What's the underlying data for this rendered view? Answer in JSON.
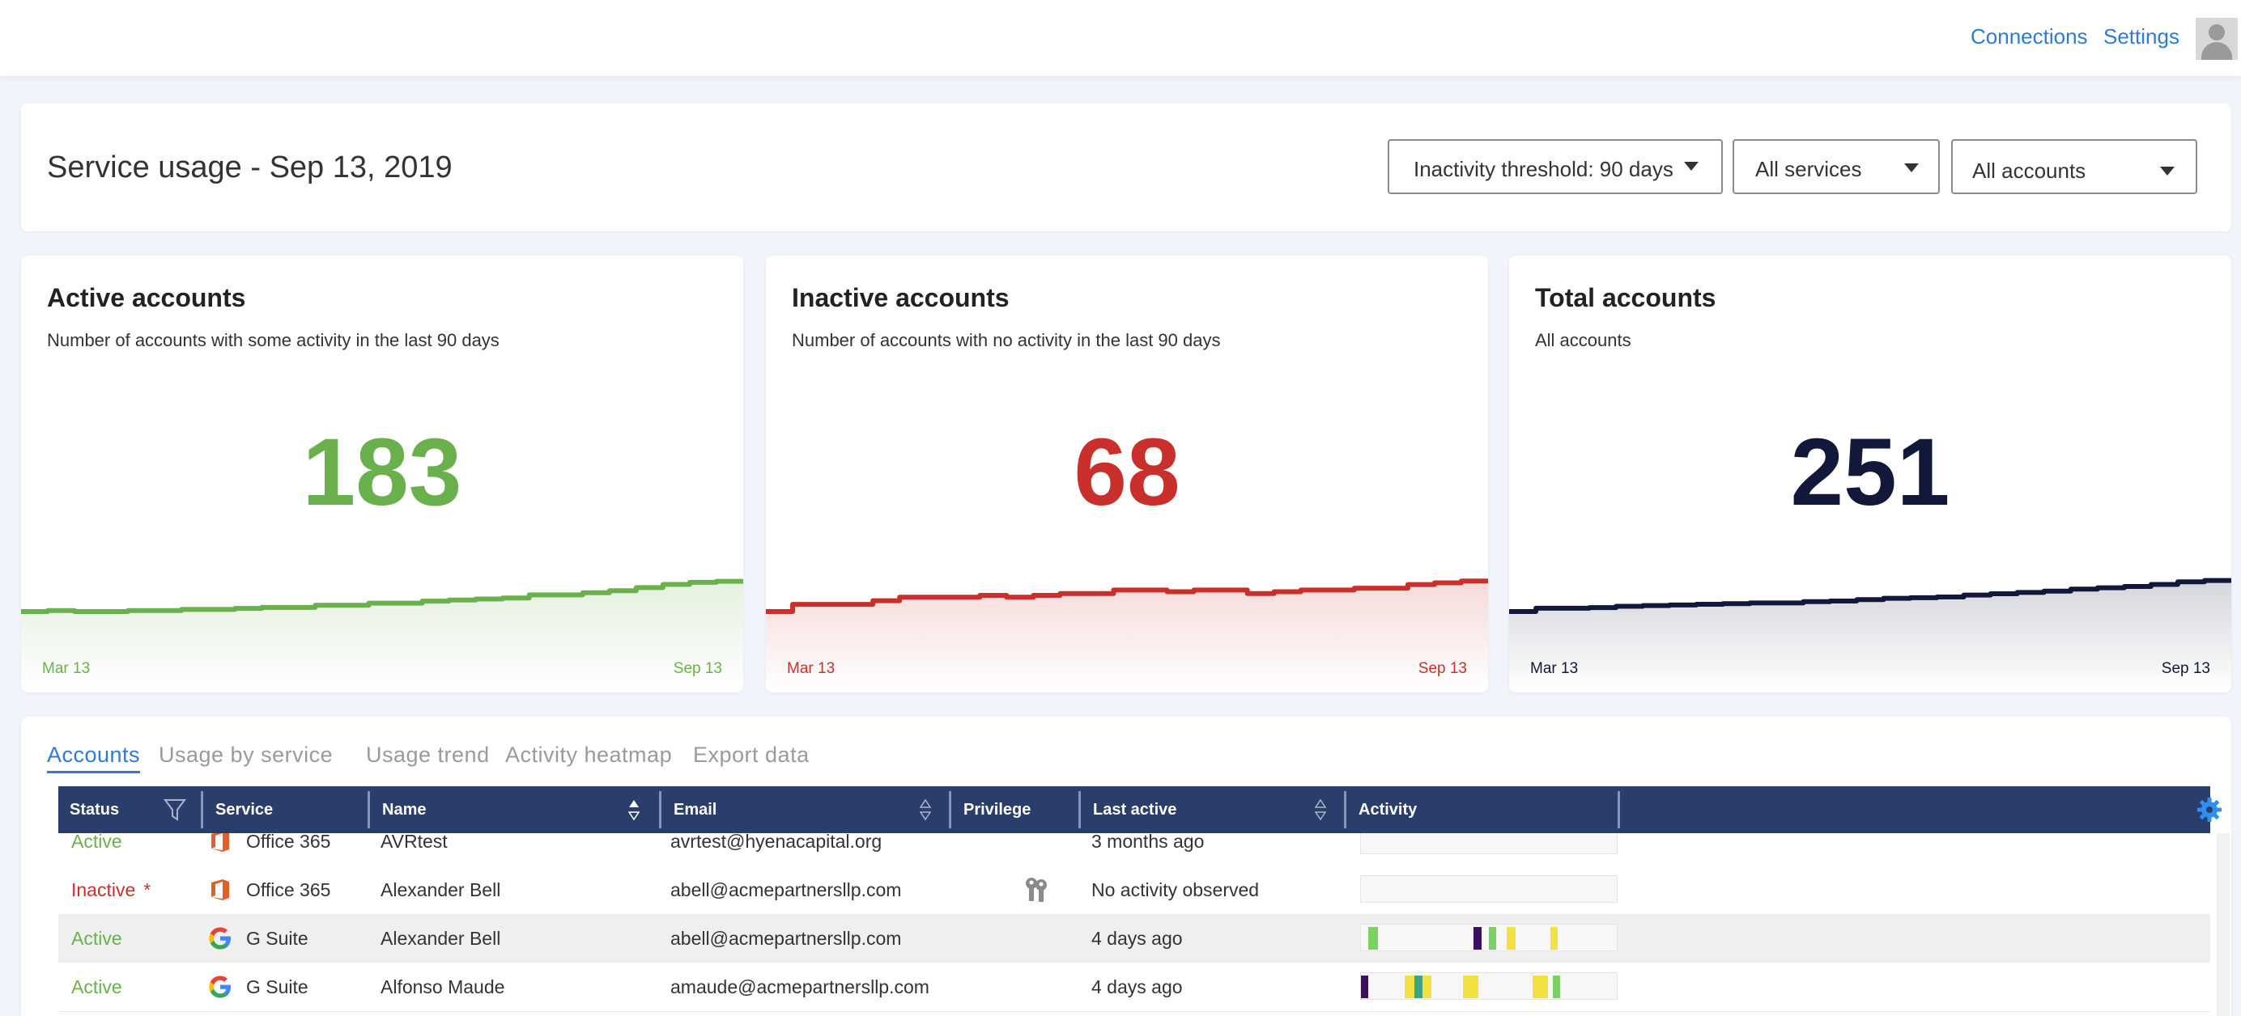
{
  "topbar": {
    "connections_label": "Connections",
    "settings_label": "Settings"
  },
  "header": {
    "title": "Service usage - Sep 13, 2019",
    "filters": {
      "inactivity": "Inactivity threshold: 90 days",
      "services": "All services",
      "accounts": "All accounts"
    }
  },
  "colors": {
    "active": "#6ab04c",
    "inactive": "#c9302c",
    "total": "#12183a",
    "accent": "#2f7ad6",
    "table_header": "#2b3e6b"
  },
  "stats": {
    "active": {
      "title": "Active accounts",
      "subtitle": "Number of accounts with some activity in the last 90 days",
      "value": "183",
      "start_label": "Mar 13",
      "end_label": "Sep 13",
      "trend": [
        152,
        153,
        152,
        152,
        153,
        153,
        154,
        154,
        155,
        156,
        156,
        158,
        158,
        160,
        160,
        162,
        163,
        164,
        165,
        168,
        168,
        170,
        172,
        175,
        178,
        180,
        181,
        183
      ]
    },
    "inactive": {
      "title": "Inactive accounts",
      "subtitle": "Number of accounts with no activity in the last 90 days",
      "value": "68",
      "start_label": "Mar 13",
      "end_label": "Sep 13",
      "trend": [
        50,
        54,
        54,
        54,
        56,
        58,
        58,
        58,
        59,
        58,
        59,
        60,
        60,
        62,
        62,
        61,
        62,
        62,
        60,
        61,
        62,
        62,
        63,
        63,
        65,
        66,
        67,
        68
      ]
    },
    "total": {
      "title": "Total accounts",
      "subtitle": "All accounts",
      "value": "251",
      "start_label": "Mar 13",
      "end_label": "Sep 13",
      "trend": [
        202,
        207,
        207,
        208,
        210,
        211,
        212,
        213,
        214,
        215,
        215,
        217,
        218,
        220,
        222,
        223,
        224,
        227,
        229,
        231,
        233,
        236,
        238,
        240,
        243,
        247,
        249,
        251
      ]
    }
  },
  "tabs": [
    "Accounts",
    "Usage by service",
    "Usage trend",
    "Activity heatmap",
    "Export data"
  ],
  "table": {
    "columns": [
      "Status",
      "Service",
      "Name",
      "Email",
      "Privilege",
      "Last active",
      "Activity"
    ],
    "rows": [
      {
        "status": "Active",
        "service": "Office 365",
        "service_icon": "office365-icon",
        "name": "AVRtest",
        "email": "avrtest@hyenacapital.org",
        "privilege": "",
        "last_active": "3 months ago",
        "activity": []
      },
      {
        "status": "Inactive",
        "status_marker": "*",
        "service": "Office 365",
        "service_icon": "office365-icon",
        "name": "Alexander Bell",
        "email": "abell@acmepartnersllp.com",
        "privilege": "keys-icon",
        "last_active": "No activity observed",
        "activity": []
      },
      {
        "status": "Active",
        "service": "G Suite",
        "service_icon": "google-icon",
        "name": "Alexander Bell",
        "email": "abell@acmepartnersllp.com",
        "privilege": "",
        "last_active": "4 days ago",
        "activity": [
          {
            "pos": 0.03,
            "w": 0.035,
            "color": "#7ccf63"
          },
          {
            "pos": 0.44,
            "w": 0.03,
            "color": "#3d0f5e"
          },
          {
            "pos": 0.5,
            "w": 0.03,
            "color": "#7ccf63"
          },
          {
            "pos": 0.57,
            "w": 0.035,
            "color": "#f2e241"
          },
          {
            "pos": 0.74,
            "w": 0.03,
            "color": "#f2e241"
          }
        ]
      },
      {
        "status": "Active",
        "service": "G Suite",
        "service_icon": "google-icon",
        "name": "Alfonso Maude",
        "email": "amaude@acmepartnersllp.com",
        "privilege": "",
        "last_active": "4 days ago",
        "activity": [
          {
            "pos": 0.0,
            "w": 0.03,
            "color": "#3d0f5e"
          },
          {
            "pos": 0.17,
            "w": 0.04,
            "color": "#f2e241"
          },
          {
            "pos": 0.21,
            "w": 0.03,
            "color": "#3aa383"
          },
          {
            "pos": 0.24,
            "w": 0.035,
            "color": "#f2e241"
          },
          {
            "pos": 0.4,
            "w": 0.06,
            "color": "#f2e241"
          },
          {
            "pos": 0.67,
            "w": 0.06,
            "color": "#f2e241"
          },
          {
            "pos": 0.75,
            "w": 0.03,
            "color": "#7ccf63"
          }
        ]
      }
    ]
  }
}
